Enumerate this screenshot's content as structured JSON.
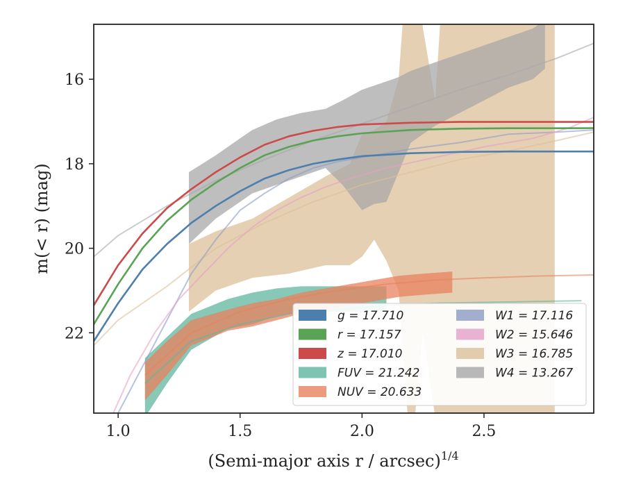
{
  "chart_data": {
    "type": "line",
    "xlabel": "(Semi-major axis r / arcsec)",
    "xlabel_exponent": "1/4",
    "ylabel": "m(< r) (mag)",
    "xlim": [
      0.9,
      2.95
    ],
    "ylim": [
      23.9,
      14.7
    ],
    "y_inverted": true,
    "grid": false,
    "legend_position": "lower-right",
    "x_ticks": [
      {
        "value": 1.0,
        "label": "1.0"
      },
      {
        "value": 1.5,
        "label": "1.5"
      },
      {
        "value": 2.0,
        "label": "2.0"
      },
      {
        "value": 2.5,
        "label": "2.5"
      }
    ],
    "y_ticks": [
      {
        "value": 16,
        "label": "16"
      },
      {
        "value": 18,
        "label": "18"
      },
      {
        "value": 20,
        "label": "20"
      },
      {
        "value": 22,
        "label": "22"
      }
    ],
    "series": [
      {
        "name": "FUV",
        "legend": "FUV = 21.242",
        "color": "#5fb59f",
        "band_x": [
          1.11,
          1.2,
          1.3,
          1.45,
          1.55,
          1.65,
          1.75,
          1.85,
          1.95,
          2.05,
          2.1
        ],
        "band_upper": [
          22.6,
          22.1,
          21.55,
          21.2,
          21.05,
          20.95,
          20.9,
          20.9,
          20.9,
          20.9,
          20.9
        ],
        "band_lower": [
          24.0,
          23.2,
          22.4,
          21.9,
          21.8,
          21.6,
          21.5,
          21.5,
          21.5,
          21.5,
          21.5
        ],
        "line_x": [
          1.11,
          1.3,
          1.5,
          1.7,
          1.9,
          2.1,
          2.3,
          2.5,
          2.7,
          2.9
        ],
        "line_y": [
          23.2,
          22.2,
          21.8,
          21.55,
          21.45,
          21.35,
          21.3,
          21.28,
          21.26,
          21.24
        ]
      },
      {
        "name": "NUV",
        "legend": "NUV = 20.633",
        "color": "#e8825e",
        "band_x": [
          1.11,
          1.2,
          1.3,
          1.45,
          1.55,
          1.65,
          1.75,
          1.85,
          1.95,
          2.05,
          2.15,
          2.25,
          2.37
        ],
        "band_upper": [
          22.7,
          22.2,
          21.7,
          21.45,
          21.3,
          21.2,
          21.05,
          20.95,
          20.85,
          20.75,
          20.65,
          20.6,
          20.55
        ],
        "band_lower": [
          23.6,
          23.0,
          22.3,
          21.95,
          21.85,
          21.7,
          21.55,
          21.45,
          21.35,
          21.25,
          21.15,
          21.1,
          21.05
        ],
        "line_x": [
          1.11,
          1.3,
          1.5,
          1.7,
          1.9,
          2.1,
          2.3,
          2.5,
          2.7,
          2.95
        ],
        "line_y": [
          23.0,
          22.0,
          21.5,
          21.2,
          21.0,
          20.85,
          20.75,
          20.7,
          20.66,
          20.63
        ]
      },
      {
        "name": "W3",
        "legend": "W3 = 16.785",
        "color": "#dcc09a",
        "band_x": [
          1.29,
          1.4,
          1.55,
          1.7,
          1.85,
          1.95,
          2.0,
          2.05,
          2.1,
          2.15,
          2.2,
          2.25,
          2.3,
          2.35,
          2.45,
          2.55,
          2.65,
          2.75,
          2.79
        ],
        "band_upper": [
          19.9,
          19.6,
          19.3,
          18.8,
          18.3,
          18.0,
          17.3,
          17.2,
          17.0,
          16.0,
          12.0,
          14.8,
          16.5,
          12.0,
          12.0,
          12.0,
          12.0,
          12.0,
          12.0
        ],
        "band_lower": [
          21.5,
          21.0,
          20.7,
          20.6,
          20.4,
          20.4,
          20.2,
          19.8,
          20.3,
          21.0,
          25.0,
          22.0,
          24.0,
          25.0,
          25.0,
          25.0,
          25.0,
          25.0,
          25.0
        ],
        "line_x": [
          0.9,
          1.0,
          1.2,
          1.4,
          1.6,
          1.8,
          2.0,
          2.2,
          2.4,
          2.6,
          2.8,
          2.95
        ],
        "line_y": [
          22.3,
          21.7,
          20.9,
          20.0,
          19.4,
          18.9,
          18.5,
          18.2,
          17.9,
          17.7,
          17.45,
          17.25
        ]
      },
      {
        "name": "W4",
        "legend": "W4 = 13.267",
        "color": "#a8a8a8",
        "band_x": [
          1.29,
          1.4,
          1.5,
          1.55,
          1.65,
          1.75,
          1.85,
          1.92,
          2.0,
          2.05,
          2.1,
          2.15,
          2.2,
          2.3,
          2.4,
          2.5,
          2.6,
          2.7,
          2.75
        ],
        "band_upper": [
          18.2,
          17.8,
          17.4,
          17.2,
          16.95,
          16.8,
          16.7,
          16.5,
          16.25,
          16.15,
          16.05,
          15.95,
          15.8,
          15.6,
          15.4,
          15.2,
          15.0,
          14.8,
          14.6
        ],
        "band_lower": [
          19.9,
          19.3,
          18.9,
          18.7,
          18.5,
          18.3,
          18.1,
          18.5,
          19.1,
          18.95,
          18.9,
          18.2,
          17.5,
          17.1,
          16.8,
          16.5,
          16.2,
          16.0,
          15.75
        ],
        "line_x": [
          0.9,
          1.0,
          1.2,
          1.4,
          1.6,
          1.8,
          2.0,
          2.2,
          2.4,
          2.6,
          2.8,
          2.95
        ],
        "line_y": [
          20.2,
          19.7,
          19.0,
          18.4,
          17.9,
          17.45,
          17.05,
          16.65,
          16.25,
          15.9,
          15.5,
          15.15
        ]
      },
      {
        "name": "W1",
        "legend": "W1 = 17.116",
        "color": "#8c9bc4",
        "line_x": [
          1.0,
          1.1,
          1.2,
          1.3,
          1.4,
          1.5,
          1.6,
          1.7,
          1.8,
          1.9,
          2.0,
          2.1,
          2.2,
          2.4,
          2.6,
          2.8,
          2.95
        ],
        "line_y": [
          23.9,
          22.8,
          21.7,
          20.6,
          19.8,
          19.1,
          18.7,
          18.35,
          18.1,
          17.95,
          17.85,
          17.75,
          17.65,
          17.5,
          17.3,
          17.25,
          17.2
        ]
      },
      {
        "name": "W2",
        "legend": "W2 = 15.646",
        "color": "#e5a0c8",
        "line_x": [
          0.98,
          1.05,
          1.15,
          1.25,
          1.35,
          1.45,
          1.55,
          1.65,
          1.75,
          1.85,
          1.95,
          2.1,
          2.3,
          2.5,
          2.7,
          2.85,
          2.95
        ],
        "line_y": [
          23.9,
          23.0,
          22.0,
          21.2,
          20.6,
          20.0,
          19.5,
          19.1,
          18.8,
          18.55,
          18.35,
          18.1,
          17.85,
          17.6,
          17.4,
          17.15,
          16.9
        ]
      },
      {
        "name": "g",
        "legend": "g = 17.710",
        "color": "#4c7fad",
        "line_x": [
          0.9,
          1.0,
          1.1,
          1.2,
          1.3,
          1.4,
          1.5,
          1.6,
          1.7,
          1.8,
          1.9,
          2.0,
          2.2,
          2.4,
          2.6,
          2.8,
          2.95
        ],
        "line_y": [
          22.2,
          21.3,
          20.5,
          19.9,
          19.4,
          19.0,
          18.65,
          18.35,
          18.15,
          18.0,
          17.9,
          17.82,
          17.75,
          17.72,
          17.71,
          17.71,
          17.71
        ]
      },
      {
        "name": "r",
        "legend": "r = 17.157",
        "color": "#5aa355",
        "line_x": [
          0.9,
          1.0,
          1.1,
          1.2,
          1.3,
          1.4,
          1.5,
          1.6,
          1.7,
          1.8,
          1.9,
          2.0,
          2.2,
          2.4,
          2.6,
          2.8,
          2.95
        ],
        "line_y": [
          21.8,
          20.85,
          20.0,
          19.35,
          18.85,
          18.45,
          18.1,
          17.8,
          17.6,
          17.45,
          17.35,
          17.28,
          17.2,
          17.17,
          17.16,
          17.16,
          17.157
        ]
      },
      {
        "name": "z",
        "legend": "z = 17.010",
        "color": "#cc4a4a",
        "line_x": [
          0.9,
          1.0,
          1.1,
          1.2,
          1.3,
          1.4,
          1.5,
          1.6,
          1.7,
          1.8,
          1.9,
          2.0,
          2.2,
          2.4,
          2.6,
          2.8,
          2.95
        ],
        "line_y": [
          21.35,
          20.4,
          19.65,
          19.05,
          18.6,
          18.2,
          17.85,
          17.55,
          17.35,
          17.22,
          17.13,
          17.07,
          17.03,
          17.01,
          17.01,
          17.01,
          17.01
        ]
      }
    ],
    "legend": [
      [
        "g = 17.710",
        "r = 17.157",
        "z = 17.010",
        "FUV = 21.242",
        "NUV = 20.633"
      ],
      [
        "W1 = 17.116",
        "W2 = 15.646",
        "W3 = 16.785",
        "W4 = 13.267"
      ]
    ]
  }
}
